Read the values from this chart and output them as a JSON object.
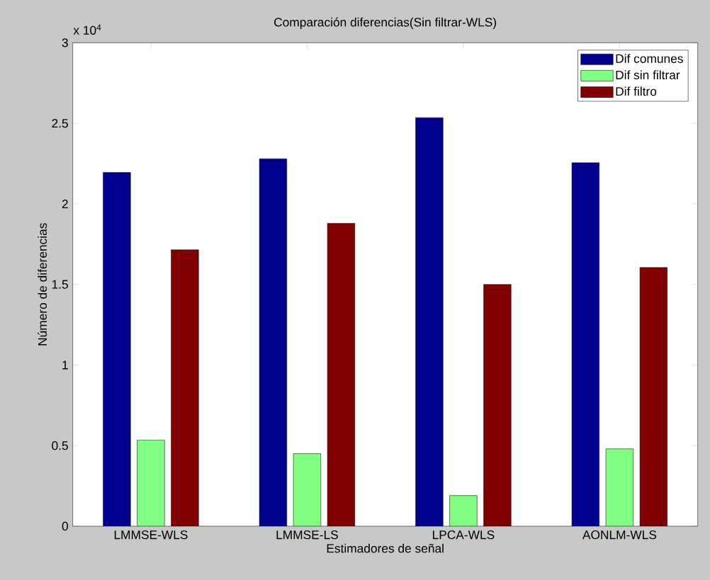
{
  "chart_data": {
    "type": "bar",
    "title": "Comparación diferencias(Sin filtrar-WLS)",
    "xlabel": "Estimadores de señal",
    "ylabel": "Número de diferencias",
    "categories": [
      "LMMSE-WLS",
      "LMMSE-LS",
      "LPCA-WLS",
      "AONLM-WLS"
    ],
    "series": [
      {
        "name": "Dif comunes",
        "color": "#00008f",
        "values": [
          2.195,
          2.28,
          2.535,
          2.255
        ]
      },
      {
        "name": "Dif sin filtrar",
        "color": "#80ff80",
        "values": [
          0.535,
          0.45,
          0.19,
          0.48
        ]
      },
      {
        "name": "Dif filtro",
        "color": "#800000",
        "values": [
          1.715,
          1.88,
          1.5,
          1.605
        ]
      }
    ],
    "ylim": [
      0,
      3
    ],
    "yticks": [
      0,
      0.5,
      1,
      1.5,
      2,
      2.5,
      3
    ],
    "annotations": [
      "x 10$^{4}$"
    ],
    "legend": "top right",
    "grid": false
  }
}
